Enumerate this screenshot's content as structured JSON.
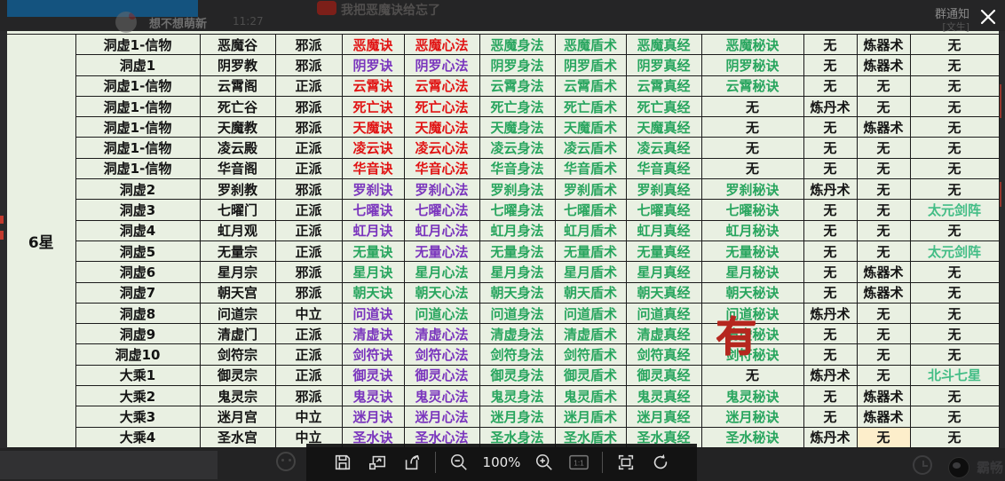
{
  "viewer": {
    "close_icon": "close",
    "toolbar": {
      "zoom_level": "100%",
      "icons": [
        "save-icon",
        "open-in-window-icon",
        "share-icon",
        "zoom-out-icon",
        "zoom-in-icon",
        "actual-size-icon",
        "fit-screen-icon",
        "rotate-icon"
      ]
    }
  },
  "background_chat": {
    "group_notice": "群通知",
    "group_sub": "[文生]",
    "nickname": "想不想萌新",
    "time": "11:27",
    "message": "我把恶魔诀给忘了",
    "bottom_right_name": "霸畅"
  },
  "table": {
    "star_label": "6星",
    "annotation": "有",
    "colors": {
      "red": "#e11414",
      "purple": "#7a35bd",
      "green": "#28a55e",
      "light_green": "#43bd86",
      "black": "#141414",
      "highlight_bg": "#fdeecb"
    },
    "rows": [
      {
        "cells": [
          "洞虚1-信物",
          "恶魔谷",
          "邪派",
          "恶魔诀",
          "恶魔心法",
          "恶魔身法",
          "恶魔盾术",
          "恶魔真经",
          "恶魔秘诀",
          "无",
          "炼器术",
          "无"
        ],
        "colors": [
          "k",
          "k",
          "k",
          "r",
          "r",
          "g",
          "g",
          "g",
          "g",
          "k",
          "k",
          "k"
        ]
      },
      {
        "cells": [
          "洞虚1",
          "阴罗教",
          "邪派",
          "阴罗诀",
          "阴罗心法",
          "阴罗身法",
          "阴罗盾术",
          "阴罗真经",
          "阴罗秘诀",
          "无",
          "炼器术",
          "无"
        ],
        "colors": [
          "k",
          "k",
          "k",
          "p",
          "p",
          "g",
          "g",
          "g",
          "g",
          "k",
          "k",
          "k"
        ]
      },
      {
        "cells": [
          "洞虚1-信物",
          "云霄阁",
          "正派",
          "云霄诀",
          "云霄心法",
          "云霄身法",
          "云霄盾术",
          "云霄真经",
          "云霄秘诀",
          "无",
          "无",
          "无"
        ],
        "colors": [
          "k",
          "k",
          "k",
          "r",
          "r",
          "g",
          "g",
          "g",
          "g",
          "k",
          "k",
          "k"
        ]
      },
      {
        "cells": [
          "洞虚1-信物",
          "死亡谷",
          "邪派",
          "死亡诀",
          "死亡心法",
          "死亡身法",
          "死亡盾术",
          "死亡真经",
          "无",
          "炼丹术",
          "无",
          "无"
        ],
        "colors": [
          "k",
          "k",
          "k",
          "r",
          "r",
          "g",
          "g",
          "g",
          "k",
          "k",
          "k",
          "k"
        ]
      },
      {
        "cells": [
          "洞虚1-信物",
          "天魔教",
          "邪派",
          "天魔诀",
          "天魔心法",
          "天魔身法",
          "天魔盾术",
          "天魔真经",
          "无",
          "无",
          "炼器术",
          "无"
        ],
        "colors": [
          "k",
          "k",
          "k",
          "r",
          "r",
          "g",
          "g",
          "g",
          "k",
          "k",
          "k",
          "k"
        ]
      },
      {
        "cells": [
          "洞虚1-信物",
          "凌云殿",
          "正派",
          "凌云诀",
          "凌云心法",
          "凌云身法",
          "凌云盾术",
          "凌云真经",
          "无",
          "无",
          "无",
          "无"
        ],
        "colors": [
          "k",
          "k",
          "k",
          "r",
          "r",
          "g",
          "g",
          "g",
          "k",
          "k",
          "k",
          "k"
        ]
      },
      {
        "cells": [
          "洞虚1-信物",
          "华音阁",
          "正派",
          "华音诀",
          "华音心法",
          "华音身法",
          "华音盾术",
          "华音真经",
          "无",
          "无",
          "无",
          "无"
        ],
        "colors": [
          "k",
          "k",
          "k",
          "r",
          "r",
          "g",
          "g",
          "g",
          "k",
          "k",
          "k",
          "k"
        ]
      },
      {
        "cells": [
          "洞虚2",
          "罗刹教",
          "邪派",
          "罗刹诀",
          "罗刹心法",
          "罗刹身法",
          "罗刹盾术",
          "罗刹真经",
          "罗刹秘诀",
          "炼丹术",
          "无",
          "无"
        ],
        "colors": [
          "k",
          "k",
          "k",
          "p",
          "p",
          "g",
          "g",
          "g",
          "g",
          "k",
          "k",
          "k"
        ]
      },
      {
        "cells": [
          "洞虚3",
          "七曜门",
          "正派",
          "七曜诀",
          "七曜心法",
          "七曜身法",
          "七曜盾术",
          "七曜真经",
          "七曜秘诀",
          "无",
          "无",
          "太元剑阵"
        ],
        "colors": [
          "k",
          "k",
          "k",
          "p",
          "p",
          "g",
          "g",
          "g",
          "g",
          "k",
          "k",
          "t"
        ]
      },
      {
        "cells": [
          "洞虚4",
          "虹月观",
          "正派",
          "虹月诀",
          "虹月心法",
          "虹月身法",
          "虹月盾术",
          "虹月真经",
          "虹月秘诀",
          "无",
          "无",
          "无"
        ],
        "colors": [
          "k",
          "k",
          "k",
          "p",
          "p",
          "g",
          "g",
          "g",
          "g",
          "k",
          "k",
          "k"
        ]
      },
      {
        "cells": [
          "洞虚5",
          "无量宗",
          "正派",
          "无量诀",
          "无量心法",
          "无量身法",
          "无量盾术",
          "无量真经",
          "无量秘诀",
          "无",
          "无",
          "太元剑阵"
        ],
        "colors": [
          "k",
          "k",
          "k",
          "g",
          "p",
          "g",
          "g",
          "g",
          "g",
          "k",
          "k",
          "t"
        ]
      },
      {
        "cells": [
          "洞虚6",
          "星月宗",
          "邪派",
          "星月诀",
          "星月心法",
          "星月身法",
          "星月盾术",
          "星月真经",
          "星月秘诀",
          "无",
          "炼器术",
          "无"
        ],
        "colors": [
          "k",
          "k",
          "k",
          "g",
          "g",
          "g",
          "g",
          "g",
          "g",
          "k",
          "k",
          "k"
        ]
      },
      {
        "cells": [
          "洞虚7",
          "朝天宫",
          "邪派",
          "朝天诀",
          "朝天心法",
          "朝天身法",
          "朝天盾术",
          "朝天真经",
          "朝天秘诀",
          "无",
          "炼器术",
          "无"
        ],
        "colors": [
          "k",
          "k",
          "k",
          "g",
          "g",
          "g",
          "g",
          "g",
          "g",
          "k",
          "k",
          "k"
        ]
      },
      {
        "cells": [
          "洞虚8",
          "问道宗",
          "中立",
          "问道诀",
          "问道心法",
          "问道身法",
          "问道盾术",
          "问道真经",
          "问道秘诀",
          "炼丹术",
          "无",
          "无"
        ],
        "colors": [
          "k",
          "k",
          "k",
          "p",
          "g",
          "g",
          "g",
          "g",
          "g",
          "k",
          "k",
          "k"
        ]
      },
      {
        "cells": [
          "洞虚9",
          "清虚门",
          "正派",
          "清虚诀",
          "清虚心法",
          "清虚身法",
          "清虚盾术",
          "清虚真经",
          "清虚秘诀",
          "无",
          "无",
          "无"
        ],
        "colors": [
          "k",
          "k",
          "k",
          "p",
          "p",
          "g",
          "g",
          "g",
          "g",
          "k",
          "k",
          "k"
        ]
      },
      {
        "cells": [
          "洞虚10",
          "剑符宗",
          "正派",
          "剑符诀",
          "剑符心法",
          "剑符身法",
          "剑符盾术",
          "剑符真经",
          "剑符秘诀",
          "无",
          "无",
          "无"
        ],
        "colors": [
          "k",
          "k",
          "k",
          "p",
          "p",
          "g",
          "g",
          "g",
          "g",
          "k",
          "k",
          "k"
        ]
      },
      {
        "cells": [
          "大乘1",
          "御灵宗",
          "正派",
          "御灵诀",
          "御灵心法",
          "御灵身法",
          "御灵盾术",
          "御灵真经",
          "无",
          "炼丹术",
          "无",
          "北斗七星"
        ],
        "colors": [
          "k",
          "k",
          "k",
          "p",
          "p",
          "g",
          "g",
          "g",
          "k",
          "k",
          "k",
          "t"
        ],
        "annotation_cell": 8
      },
      {
        "cells": [
          "大乘2",
          "鬼灵宗",
          "邪派",
          "鬼灵诀",
          "鬼灵心法",
          "鬼灵身法",
          "鬼灵盾术",
          "鬼灵真经",
          "鬼灵秘诀",
          "无",
          "炼器术",
          "无"
        ],
        "colors": [
          "k",
          "k",
          "k",
          "p",
          "p",
          "g",
          "g",
          "g",
          "g",
          "k",
          "k",
          "k"
        ]
      },
      {
        "cells": [
          "大乘3",
          "迷月宫",
          "中立",
          "迷月诀",
          "迷月心法",
          "迷月身法",
          "迷月盾术",
          "迷月真经",
          "迷月秘诀",
          "无",
          "炼器术",
          "无"
        ],
        "colors": [
          "k",
          "k",
          "k",
          "p",
          "p",
          "g",
          "g",
          "g",
          "g",
          "k",
          "k",
          "k"
        ]
      },
      {
        "cells": [
          "大乘4",
          "圣水宫",
          "中立",
          "圣水诀",
          "圣水心法",
          "圣水身法",
          "圣水盾术",
          "圣水真经",
          "圣水秘诀",
          "炼丹术",
          "无",
          "无"
        ],
        "colors": [
          "k",
          "k",
          "k",
          "p",
          "p",
          "g",
          "g",
          "g",
          "g",
          "k",
          "k",
          "k"
        ],
        "highlight_cell": 10
      }
    ]
  }
}
